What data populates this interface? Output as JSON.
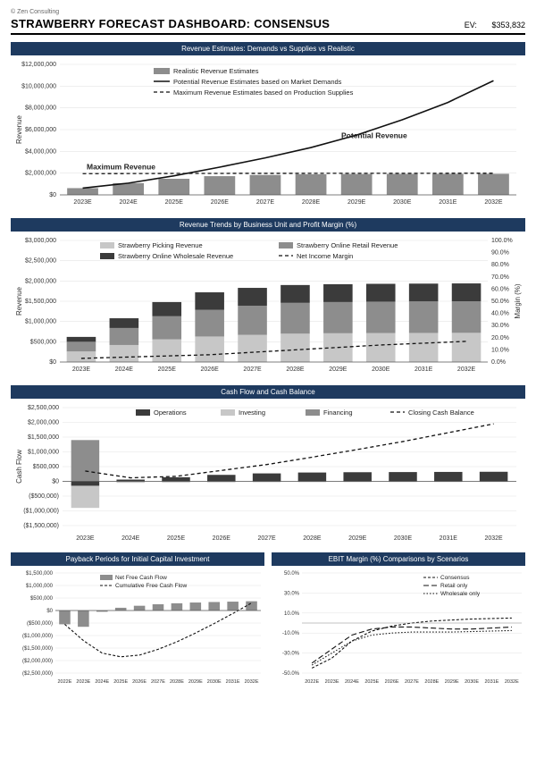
{
  "meta": {
    "copyright": "© Zen Consulting"
  },
  "header": {
    "title": "STRAWBERRY FORECAST DASHBOARD: CONSENSUS",
    "ev_label": "EV:",
    "ev_value": "$353,832"
  },
  "colors": {
    "section_bg": "#1e3a5f",
    "bar_light": "#c7c7c7",
    "bar_mid": "#8d8d8d",
    "bar_dark": "#3b3b3b",
    "line_black": "#111111",
    "grid": "#e3e3e3",
    "axis": "#888888"
  },
  "revenue_chart": {
    "title": "Revenue Estimates: Demands vs Supplies vs Realistic",
    "y_label": "Revenue",
    "categories": [
      "2023E",
      "2024E",
      "2025E",
      "2026E",
      "2027E",
      "2028E",
      "2029E",
      "2030E",
      "2031E",
      "2032E"
    ],
    "realistic_bars": [
      620000,
      1080000,
      1480000,
      1720000,
      1830000,
      1900000,
      1920000,
      1930000,
      1935000,
      1940000
    ],
    "potential_line": [
      620000,
      1080000,
      1750000,
      2550000,
      3400000,
      4350000,
      5500000,
      6900000,
      8500000,
      10500000
    ],
    "maximum_line": [
      1950000,
      1960000,
      1970000,
      1975000,
      1978000,
      1980000,
      1982000,
      1984000,
      1986000,
      1988000
    ],
    "legend": {
      "bar": "Realistic Revenue Estimates",
      "solid": "Potential Revenue Estimates based on Market Demands",
      "dash": "Maximum Revenue Estimates based on Production Supplies"
    },
    "annot_potential": "Potential Revenue",
    "annot_max": "Maximum Revenue",
    "y_ticks": [
      0,
      2000000,
      4000000,
      6000000,
      8000000,
      10000000,
      12000000
    ],
    "y_tick_labels": [
      "$0",
      "$2,000,000",
      "$4,000,000",
      "$6,000,000",
      "$8,000,000",
      "$10,000,000",
      "$12,000,000"
    ]
  },
  "trends_chart": {
    "title": "Revenue Trends by Business Unit and Profit Margin (%)",
    "y_label": "Revenue",
    "y2_label": "Margin (%)",
    "categories": [
      "2023E",
      "2024E",
      "2025E",
      "2026E",
      "2027E",
      "2028E",
      "2029E",
      "2030E",
      "2031E",
      "2032E"
    ],
    "picking": [
      260000,
      420000,
      560000,
      630000,
      670000,
      700000,
      710000,
      715000,
      718000,
      720000
    ],
    "online_r": [
      240000,
      420000,
      570000,
      660000,
      720000,
      760000,
      770000,
      775000,
      778000,
      780000
    ],
    "online_w": [
      120000,
      240000,
      350000,
      430000,
      440000,
      440000,
      440000,
      440000,
      439000,
      440000
    ],
    "net_margin": [
      3,
      4,
      5,
      6,
      8,
      10,
      12,
      14,
      15.5,
      17
    ],
    "legend": {
      "picking": "Strawberry Picking Revenue",
      "online_r": "Strawberry Online Retail Revenue",
      "online_w": "Strawberry Online Wholesale Revenue",
      "margin": "Net Income Margin"
    },
    "y_ticks": [
      0,
      500000,
      1000000,
      1500000,
      2000000,
      2500000,
      3000000
    ],
    "y_tick_labels": [
      "$0",
      "$500,000",
      "$1,000,000",
      "$1,500,000",
      "$2,000,000",
      "$2,500,000",
      "$3,000,000"
    ],
    "y2_ticks": [
      0,
      10,
      20,
      30,
      40,
      50,
      60,
      70,
      80,
      90,
      100
    ],
    "y2_tick_labels": [
      "0.0%",
      "10.0%",
      "20.0%",
      "30.0%",
      "40.0%",
      "50.0%",
      "60.0%",
      "70.0%",
      "80.0%",
      "90.0%",
      "100.0%"
    ]
  },
  "cashflow_chart": {
    "title": "Cash Flow and Cash Balance",
    "y_label": "Cash Flow",
    "categories": [
      "2023E",
      "2024E",
      "2025E",
      "2026E",
      "2027E",
      "2028E",
      "2029E",
      "2030E",
      "2031E",
      "2032E"
    ],
    "operations": [
      -150000,
      60000,
      140000,
      220000,
      270000,
      300000,
      310000,
      315000,
      320000,
      325000
    ],
    "investing": [
      -750000,
      -50000,
      -40000,
      -35000,
      -30000,
      -28000,
      -26000,
      -25000,
      -24000,
      -23000
    ],
    "financing": [
      1400000,
      0,
      0,
      0,
      0,
      0,
      0,
      0,
      0,
      0
    ],
    "closing": [
      350000,
      120000,
      170000,
      370000,
      570000,
      820000,
      1080000,
      1350000,
      1650000,
      1950000
    ],
    "legend": {
      "ops": "Operations",
      "inv": "Investing",
      "fin": "Financing",
      "close": "Closing Cash Balance"
    },
    "y_ticks": [
      -1500000,
      -1000000,
      -500000,
      0,
      500000,
      1000000,
      1500000,
      2000000,
      2500000
    ],
    "y_tick_labels": [
      "($1,500,000)",
      "($1,000,000)",
      "($500,000)",
      "$0",
      "$500,000",
      "$1,000,000",
      "$1,500,000",
      "$2,000,000",
      "$2,500,000"
    ]
  },
  "payback_chart": {
    "title": "Payback Periods for Initial Capital Investment",
    "categories": [
      "2022E",
      "2023E",
      "2024E",
      "2025E",
      "2026E",
      "2027E",
      "2028E",
      "2029E",
      "2030E",
      "2031E",
      "2032E"
    ],
    "net_fcf": [
      -550000,
      -650000,
      -50000,
      110000,
      190000,
      250000,
      290000,
      320000,
      340000,
      355000,
      370000
    ],
    "cum_fcf": [
      -550000,
      -1200000,
      -1700000,
      -1850000,
      -1780000,
      -1550000,
      -1250000,
      -900000,
      -520000,
      -120000,
      300000
    ],
    "legend": {
      "bar": "Net Free Cash Flow",
      "line": "Cumulative Free Cash Flow"
    },
    "y_ticks": [
      -2500000,
      -2000000,
      -1500000,
      -1000000,
      -500000,
      0,
      500000,
      1000000,
      1500000
    ],
    "y_tick_labels": [
      "($2,500,000)",
      "($2,000,000)",
      "($1,500,000)",
      "($1,000,000)",
      "($500,000)",
      "$0",
      "$500,000",
      "$1,000,000",
      "$1,500,000"
    ]
  },
  "ebit_chart": {
    "title": "EBIT Margin (%) Comparisons by Scenarios",
    "categories": [
      "2022E",
      "2023E",
      "2024E",
      "2025E",
      "2026E",
      "2027E",
      "2028E",
      "2029E",
      "2030E",
      "2031E",
      "2032E"
    ],
    "consensus": [
      -45,
      -35,
      -18,
      -8,
      -3,
      0,
      2,
      3,
      4,
      4.5,
      5
    ],
    "retail": [
      -40,
      -26,
      -12,
      -6,
      -4,
      -4,
      -5,
      -6,
      -6,
      -5,
      -4
    ],
    "wholesale": [
      -42,
      -30,
      -18,
      -12,
      -10,
      -9,
      -9,
      -9,
      -8.5,
      -8,
      -7.5
    ],
    "legend": {
      "consensus": "Consensus",
      "retail": "Retail only",
      "wholesale": "Wholesale only"
    },
    "y_ticks": [
      -50,
      -30,
      -10,
      10,
      30,
      50
    ],
    "y_tick_labels": [
      "-50.0%",
      "-30.0%",
      "-10.0%",
      "10.0%",
      "30.0%",
      "50.0%"
    ]
  }
}
